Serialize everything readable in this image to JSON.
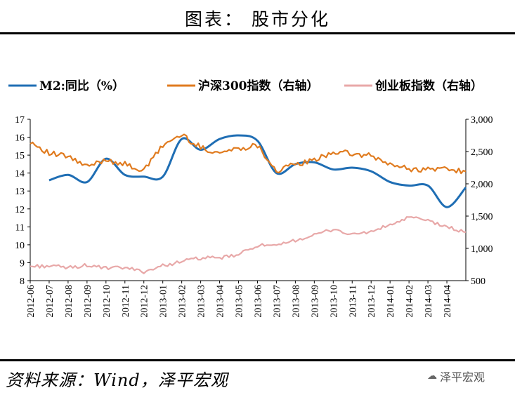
{
  "header": {
    "title": "图表： 股市分化"
  },
  "footer": {
    "source": "资料来源：Wind，泽平宏观",
    "watermark": "泽平宏观",
    "watermark_icon": "wechat-icon"
  },
  "chart_data": {
    "type": "line",
    "x": [
      "2012-06",
      "2012-07",
      "2012-08",
      "2012-09",
      "2012-10",
      "2012-11",
      "2012-12",
      "2013-01",
      "2013-02",
      "2013-03",
      "2013-04",
      "2013-05",
      "2013-06",
      "2013-07",
      "2013-08",
      "2013-09",
      "2013-10",
      "2013-11",
      "2013-12",
      "2014-01",
      "2014-02",
      "2014-03",
      "2014-04",
      "2014-05"
    ],
    "x_tick_labels": [
      "2012-06",
      "2012-07",
      "2012-08",
      "2012-09",
      "2012-10",
      "2012-11",
      "2012-12",
      "2013-01",
      "2013-02",
      "2013-03",
      "2013-04",
      "2013-05",
      "2013-06",
      "2013-07",
      "2013-08",
      "2013-09",
      "2013-10",
      "2013-11",
      "2013-12",
      "2014-01",
      "2014-02",
      "2014-03",
      "2014-04"
    ],
    "ylim_left": [
      8,
      17
    ],
    "yticks_left": [
      "8",
      "9",
      "10",
      "11",
      "12",
      "13",
      "14",
      "15",
      "16",
      "17"
    ],
    "ylim_right": [
      500,
      3000
    ],
    "yticks_right": [
      "500",
      "1,000",
      "1,500",
      "2,000",
      "2,500",
      "3,000"
    ],
    "legend_position": "top",
    "series": [
      {
        "name": "M2:同比（%）",
        "axis": "left",
        "color": "#1f6eb4",
        "values": [
          null,
          13.6,
          13.9,
          13.5,
          14.8,
          13.9,
          13.8,
          13.8,
          15.9,
          15.3,
          15.9,
          16.1,
          15.8,
          14.0,
          14.5,
          14.6,
          14.2,
          14.3,
          14.1,
          13.5,
          13.3,
          13.3,
          12.1,
          13.2
        ]
      },
      {
        "name": "沪深300指数（右轴）",
        "axis": "right",
        "color": "#e07b1f",
        "values": [
          2660,
          2470,
          2420,
          2260,
          2380,
          2300,
          2200,
          2600,
          2760,
          2560,
          2480,
          2550,
          2600,
          2200,
          2300,
          2360,
          2500,
          2460,
          2430,
          2300,
          2230,
          2220,
          2240,
          2190
        ]
      },
      {
        "name": "创业板指数（右轴）",
        "axis": "right",
        "color": "#e8a8a8",
        "values": [
          720,
          730,
          700,
          740,
          690,
          700,
          640,
          730,
          800,
          850,
          850,
          900,
          1050,
          1030,
          1130,
          1200,
          1300,
          1210,
          1260,
          1360,
          1480,
          1430,
          1330,
          1250
        ]
      }
    ]
  }
}
